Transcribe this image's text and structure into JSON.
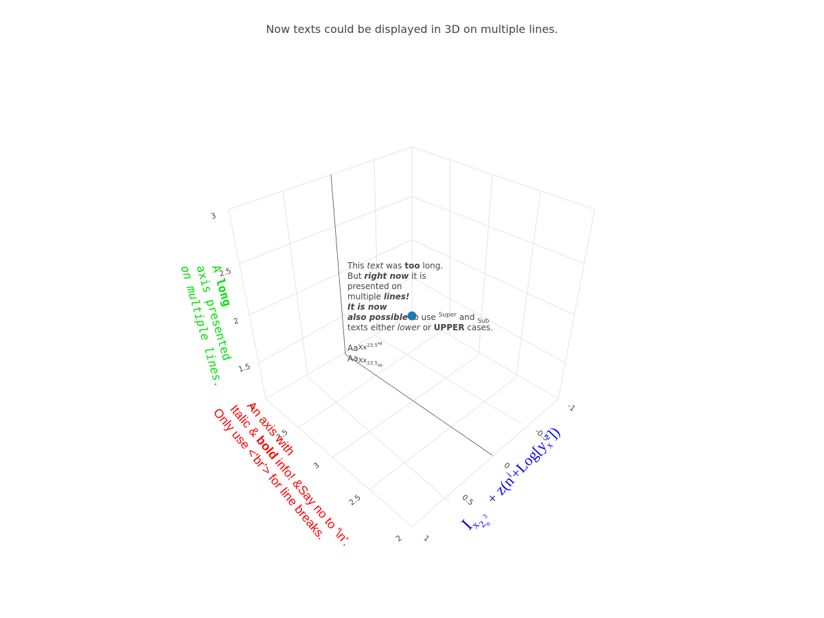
{
  "chart_data": {
    "type": "scatter3d",
    "title": "Now texts could be displayed in 3D on multiple lines.",
    "x": [
      0
    ],
    "y": [
      3
    ],
    "z": [
      2
    ],
    "marker_color": "#1f77b4",
    "xlim": [
      -1,
      1
    ],
    "ylim": [
      2,
      4
    ],
    "zlim": [
      1,
      3
    ],
    "x_ticks": [
      "1",
      "0.5",
      "0",
      "-0.5",
      "-1"
    ],
    "y_ticks": [
      "2",
      "2.5",
      "3",
      "3.5",
      "4"
    ],
    "z_ticks": [
      "1.5",
      "2",
      "2.5",
      "3"
    ],
    "xaxis_title": {
      "main": "I",
      "sub1": "x",
      "sub2": "2",
      "sub3": "n",
      "sub4": "3",
      "rest": "+ z(n",
      "sup": "i",
      "rest2": "+Log[y",
      "sub5": "x",
      "sup2": "2",
      "rest3": "])",
      "color": "#0000ff"
    },
    "yaxis_title": {
      "line1": "An axis with",
      "line2_a": "Italic &",
      "line2_bold": "bold",
      "line2_b": "info! &Say no to '\\n'.",
      "line3": "Only use <'br'> for line breaks.",
      "color": "#ff0000"
    },
    "zaxis_title": {
      "line1_a": "A",
      "line1_bold": "long",
      "line2": "axis presented",
      "line3": "on multiple lines.",
      "color": "#00ee00"
    },
    "annotation": {
      "l1_a": "This",
      "l1_i": "text",
      "l1_b": "was",
      "l1_bold": "too",
      "l1_c": "long.",
      "l2_a": "But",
      "l2_bi": "right now",
      "l2_b": "it is",
      "l3": "presented on",
      "l4_a": "multiple",
      "l4_bi": "lines!",
      "l5_bi": "It is now",
      "l6_bi": "also possible",
      "l6_a": "to use",
      "l6_sup": "Super",
      "l6_b": "and",
      "l6_sub": "Sub",
      "l7_a": "texts either",
      "l7_i": "lower",
      "l7_b": "or",
      "l7_bold": "UPPER",
      "l7_c": "cases."
    },
    "annotation2": {
      "aa1": "Aa",
      "xx1": "Xx",
      "n1": "23.5",
      "ab1": "AB",
      "aa2": "Aa",
      "xx2": "Xx",
      "n2": "23.5",
      "ab2": "AB"
    }
  }
}
